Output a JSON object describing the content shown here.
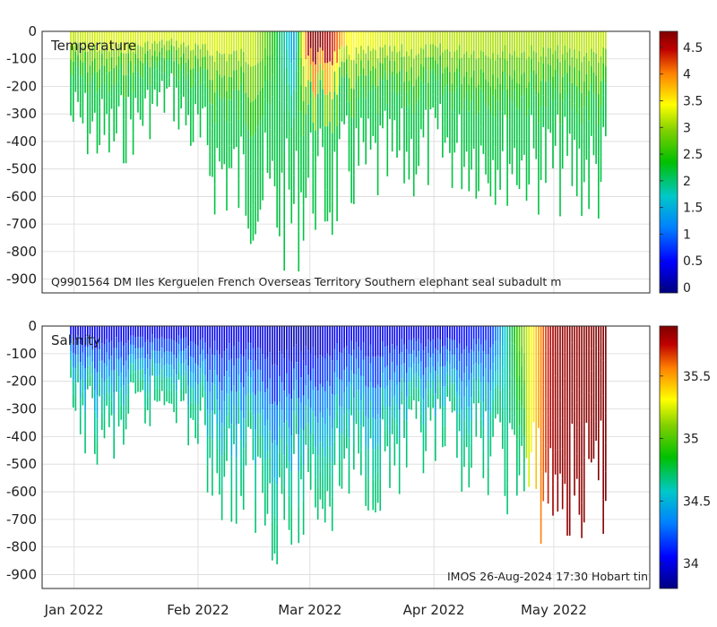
{
  "chart_data": [
    {
      "type": "heatmap",
      "title": "Temperature",
      "annotation": "Q9901564 DM Iles Kerguelen French Overseas Territory Southern elephant seal subadult m",
      "y_ticks": [
        "0",
        "-100",
        "-200",
        "-300",
        "-400",
        "-500",
        "-600",
        "-700",
        "-800",
        "-900"
      ],
      "ylim": [
        -950,
        0
      ],
      "colorbar": {
        "ticks": [
          "0",
          "0.5",
          "1",
          "1.5",
          "2",
          "2.5",
          "3",
          "3.5",
          "4",
          "4.5"
        ],
        "range": [
          -0.1,
          4.8
        ]
      },
      "grid": true,
      "series": [
        {
          "x": [
            "2021-12-30",
            "2022-01-10",
            "2022-01-25",
            "2022-02-05",
            "2022-02-15",
            "2022-02-25",
            "2022-03-01",
            "2022-03-05",
            "2022-03-10",
            "2022-03-20",
            "2022-04-01",
            "2022-04-15",
            "2022-05-01",
            "2022-05-15"
          ],
          "surface_value": [
            2.9,
            3.0,
            3.0,
            3.0,
            2.9,
            1.2,
            4.8,
            4.5,
            3.2,
            3.0,
            2.9,
            2.8,
            2.8,
            2.9
          ],
          "max_depth": [
            -400,
            -520,
            -300,
            -650,
            -760,
            -880,
            -700,
            -800,
            -660,
            -640,
            -560,
            -600,
            -650,
            -700
          ]
        }
      ]
    },
    {
      "type": "heatmap",
      "title": "Salinity",
      "annotation": "IMOS 26-Aug-2024 17:30 Hobart tin",
      "y_ticks": [
        "0",
        "-100",
        "-200",
        "-300",
        "-400",
        "-500",
        "-600",
        "-700",
        "-800",
        "-900"
      ],
      "ylim": [
        -950,
        0
      ],
      "colorbar": {
        "ticks": [
          "34",
          "34.5",
          "35",
          "35.5"
        ],
        "range": [
          33.8,
          35.9
        ]
      },
      "grid": true,
      "series": [
        {
          "x": [
            "2021-12-30",
            "2022-01-10",
            "2022-01-25",
            "2022-02-05",
            "2022-02-15",
            "2022-02-25",
            "2022-03-01",
            "2022-03-05",
            "2022-03-10",
            "2022-03-20",
            "2022-04-01",
            "2022-04-15",
            "2022-05-01",
            "2022-05-15"
          ],
          "surface_value": [
            34.0,
            34.0,
            34.0,
            34.0,
            34.0,
            33.9,
            33.9,
            34.0,
            34.0,
            34.0,
            34.0,
            34.1,
            35.8,
            35.9
          ],
          "max_depth": [
            -400,
            -520,
            -300,
            -650,
            -760,
            -880,
            -700,
            -800,
            -660,
            -640,
            -560,
            -600,
            -800,
            -750
          ]
        }
      ]
    }
  ],
  "x_axis": {
    "tick_labels": [
      "Jan 2022",
      "Feb 2022",
      "Mar 2022",
      "Apr 2022",
      "May 2022"
    ],
    "tick_dates": [
      "2022-01-01",
      "2022-02-01",
      "2022-03-01",
      "2022-04-01",
      "2022-05-01"
    ],
    "range": [
      "2021-12-24",
      "2022-05-25"
    ]
  },
  "colors": {
    "colormap": [
      "#00007f",
      "#0000ff",
      "#0080ff",
      "#00c8c8",
      "#00c000",
      "#80d000",
      "#ffff00",
      "#ff8000",
      "#c00000",
      "#7f0000"
    ],
    "grid": "#d9d9d9",
    "axis": "#262626"
  }
}
